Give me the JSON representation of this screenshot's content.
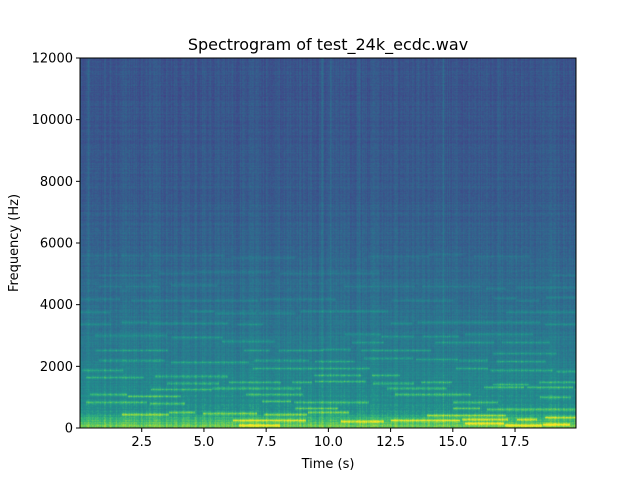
{
  "chart_data": {
    "type": "heatmap",
    "title": "Spectrogram of test_24k_ecdc.wav",
    "xlabel": "Time (s)",
    "ylabel": "Frequency (Hz)",
    "xlim": [
      0.02,
      19.95
    ],
    "ylim": [
      0,
      12000
    ],
    "xticks": [
      2.5,
      5.0,
      7.5,
      10.0,
      12.5,
      15.0,
      17.5
    ],
    "xtick_labels": [
      "2.5",
      "5.0",
      "7.5",
      "10.0",
      "12.5",
      "15.0",
      "17.5"
    ],
    "yticks": [
      0,
      2000,
      4000,
      6000,
      8000,
      10000,
      12000
    ],
    "ytick_labels": [
      "0",
      "2000",
      "4000",
      "6000",
      "8000",
      "10000",
      "12000"
    ],
    "colormap": "viridis",
    "grid": false,
    "harmonic_bands_hz": [
      150,
      300,
      450,
      650,
      850,
      1050,
      1300,
      1500,
      1700,
      1900,
      2200,
      2500,
      2800,
      3000,
      3400,
      3800,
      4200,
      4600,
      5000,
      5600
    ],
    "strong_transient_times_s": [
      0.35,
      9.75,
      10.1,
      11.2,
      13.6,
      14.6,
      16.8,
      18.6
    ]
  }
}
